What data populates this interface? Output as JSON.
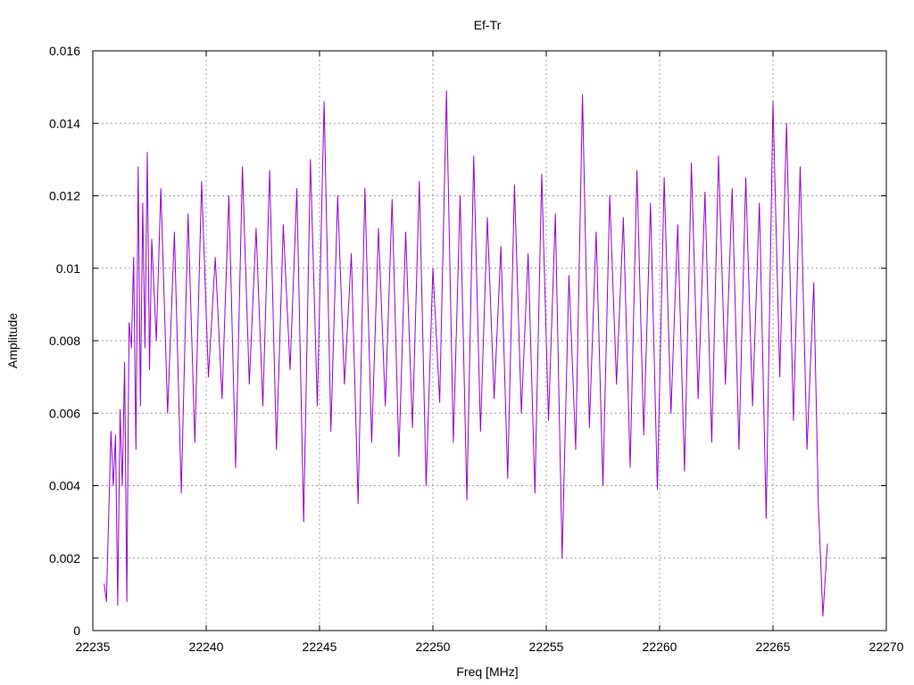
{
  "chart_data": {
    "type": "line",
    "title": "Ef-Tr",
    "xlabel": "Freq [MHz]",
    "ylabel": "Amplitude",
    "xlim": [
      22235,
      22270
    ],
    "ylim": [
      0,
      0.016
    ],
    "x_ticks": [
      "22235",
      "22240",
      "22245",
      "22250",
      "22255",
      "22260",
      "22265",
      "22270"
    ],
    "y_ticks": [
      "0",
      "0.002",
      "0.004",
      "0.006",
      "0.008",
      "0.01",
      "0.012",
      "0.014",
      "0.016"
    ],
    "grid": true,
    "legend": "none",
    "series": [
      {
        "color": "#9400d3",
        "x": [
          22235.5,
          22235.6,
          22235.7,
          22235.8,
          22235.9,
          22236.0,
          22236.1,
          22236.2,
          22236.3,
          22236.4,
          22236.5,
          22236.6,
          22236.7,
          22236.8,
          22236.9,
          22237.0,
          22237.1,
          22237.2,
          22237.3,
          22237.4,
          22237.5,
          22237.6,
          22237.8,
          22238.0,
          22238.3,
          22238.6,
          22238.9,
          22239.2,
          22239.5,
          22239.8,
          22240.1,
          22240.4,
          22240.7,
          22241.0,
          22241.3,
          22241.6,
          22241.9,
          22242.2,
          22242.5,
          22242.8,
          22243.1,
          22243.4,
          22243.7,
          22244.0,
          22244.3,
          22244.6,
          22244.9,
          22245.2,
          22245.5,
          22245.8,
          22246.1,
          22246.4,
          22246.7,
          22247.0,
          22247.3,
          22247.6,
          22247.9,
          22248.2,
          22248.5,
          22248.8,
          22249.1,
          22249.4,
          22249.7,
          22250.0,
          22250.3,
          22250.6,
          22250.9,
          22251.2,
          22251.5,
          22251.8,
          22252.1,
          22252.4,
          22252.7,
          22253.0,
          22253.3,
          22253.6,
          22253.9,
          22254.2,
          22254.5,
          22254.8,
          22255.1,
          22255.4,
          22255.7,
          22256.0,
          22256.3,
          22256.6,
          22256.9,
          22257.2,
          22257.5,
          22257.8,
          22258.1,
          22258.4,
          22258.7,
          22259.0,
          22259.3,
          22259.6,
          22259.9,
          22260.2,
          22260.5,
          22260.8,
          22261.1,
          22261.4,
          22261.7,
          22262.0,
          22262.3,
          22262.6,
          22262.9,
          22263.2,
          22263.5,
          22263.8,
          22264.1,
          22264.4,
          22264.7,
          22265.0,
          22265.3,
          22265.6,
          22265.9,
          22266.2,
          22266.5,
          22266.8,
          22267.0,
          22267.2,
          22267.4
        ],
        "y": [
          0.0013,
          0.0008,
          0.0032,
          0.0055,
          0.004,
          0.0054,
          0.0007,
          0.0061,
          0.004,
          0.0074,
          0.0008,
          0.0085,
          0.0078,
          0.0103,
          0.005,
          0.0128,
          0.0062,
          0.0118,
          0.0078,
          0.0132,
          0.0072,
          0.0108,
          0.008,
          0.0122,
          0.006,
          0.011,
          0.0038,
          0.0115,
          0.0052,
          0.0124,
          0.007,
          0.0103,
          0.0064,
          0.012,
          0.0045,
          0.0128,
          0.0068,
          0.0111,
          0.0062,
          0.0127,
          0.005,
          0.0112,
          0.0072,
          0.0122,
          0.003,
          0.013,
          0.0062,
          0.0146,
          0.0055,
          0.012,
          0.0068,
          0.0104,
          0.0035,
          0.0122,
          0.0052,
          0.0111,
          0.0062,
          0.0119,
          0.0048,
          0.011,
          0.0056,
          0.0124,
          0.004,
          0.01,
          0.0063,
          0.0149,
          0.0052,
          0.012,
          0.0036,
          0.0131,
          0.0055,
          0.0114,
          0.0064,
          0.0106,
          0.0042,
          0.0123,
          0.006,
          0.0104,
          0.0038,
          0.0126,
          0.0058,
          0.0115,
          0.002,
          0.0098,
          0.005,
          0.0148,
          0.0056,
          0.011,
          0.004,
          0.012,
          0.0068,
          0.0114,
          0.0045,
          0.0127,
          0.0054,
          0.0118,
          0.0039,
          0.0125,
          0.006,
          0.0112,
          0.0044,
          0.0129,
          0.0064,
          0.0121,
          0.0052,
          0.0131,
          0.0068,
          0.0122,
          0.005,
          0.0125,
          0.0062,
          0.0118,
          0.0031,
          0.0146,
          0.007,
          0.014,
          0.0058,
          0.0128,
          0.005,
          0.0096,
          0.0035,
          0.0004,
          0.0024
        ]
      }
    ]
  }
}
